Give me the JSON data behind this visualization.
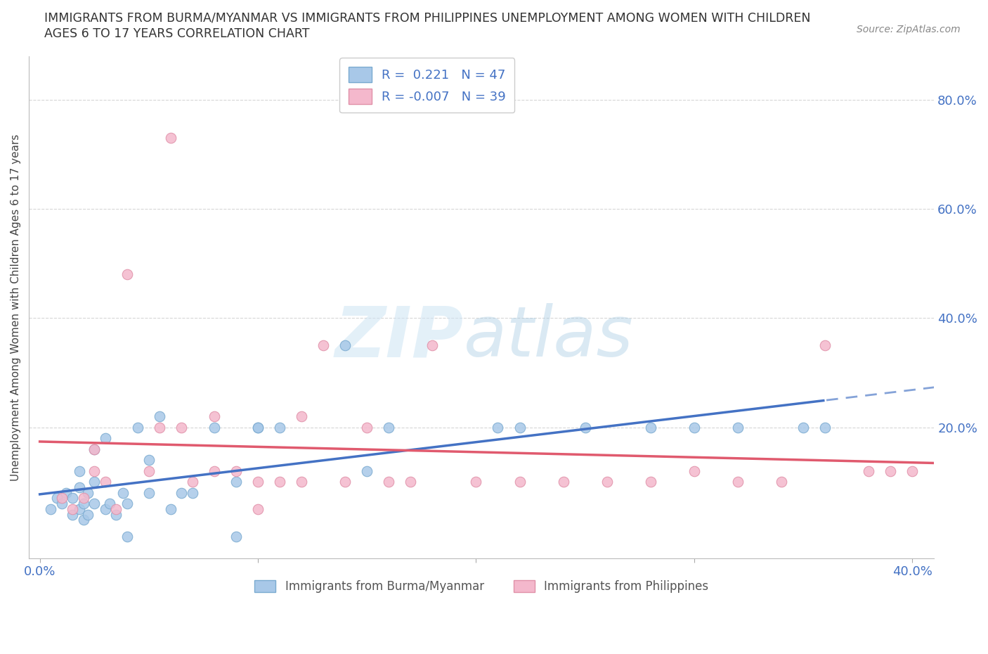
{
  "title_line1": "IMMIGRANTS FROM BURMA/MYANMAR VS IMMIGRANTS FROM PHILIPPINES UNEMPLOYMENT AMONG WOMEN WITH CHILDREN",
  "title_line2": "AGES 6 TO 17 YEARS CORRELATION CHART",
  "source": "Source: ZipAtlas.com",
  "ylabel": "Unemployment Among Women with Children Ages 6 to 17 years",
  "xlim": [
    -0.005,
    0.41
  ],
  "ylim": [
    -0.04,
    0.88
  ],
  "color_burma": "#a8c8e8",
  "color_burma_edge": "#7aaad0",
  "color_burma_line": "#4472c4",
  "color_phil": "#f4b8cc",
  "color_phil_edge": "#e090a8",
  "color_phil_line": "#e05a6e",
  "color_text_blue": "#4472c4",
  "color_grid": "#cccccc",
  "background_color": "#ffffff",
  "burma_x": [
    0.005,
    0.008,
    0.01,
    0.012,
    0.015,
    0.015,
    0.018,
    0.018,
    0.018,
    0.02,
    0.02,
    0.022,
    0.022,
    0.025,
    0.025,
    0.025,
    0.03,
    0.03,
    0.032,
    0.035,
    0.038,
    0.04,
    0.04,
    0.045,
    0.05,
    0.05,
    0.055,
    0.06,
    0.065,
    0.07,
    0.08,
    0.09,
    0.09,
    0.1,
    0.1,
    0.11,
    0.14,
    0.15,
    0.16,
    0.21,
    0.22,
    0.25,
    0.28,
    0.3,
    0.32,
    0.35,
    0.36
  ],
  "burma_y": [
    0.05,
    0.07,
    0.06,
    0.08,
    0.04,
    0.07,
    0.05,
    0.09,
    0.12,
    0.03,
    0.06,
    0.04,
    0.08,
    0.06,
    0.1,
    0.16,
    0.05,
    0.18,
    0.06,
    0.04,
    0.08,
    0.0,
    0.06,
    0.2,
    0.08,
    0.14,
    0.22,
    0.05,
    0.08,
    0.08,
    0.2,
    0.0,
    0.1,
    0.2,
    0.2,
    0.2,
    0.35,
    0.12,
    0.2,
    0.2,
    0.2,
    0.2,
    0.2,
    0.2,
    0.2,
    0.2,
    0.2
  ],
  "phil_x": [
    0.01,
    0.015,
    0.02,
    0.025,
    0.025,
    0.03,
    0.035,
    0.04,
    0.05,
    0.055,
    0.06,
    0.065,
    0.07,
    0.08,
    0.08,
    0.09,
    0.1,
    0.1,
    0.11,
    0.12,
    0.12,
    0.13,
    0.14,
    0.15,
    0.16,
    0.17,
    0.18,
    0.2,
    0.22,
    0.24,
    0.26,
    0.28,
    0.3,
    0.32,
    0.34,
    0.36,
    0.38,
    0.39,
    0.4
  ],
  "phil_y": [
    0.07,
    0.05,
    0.07,
    0.12,
    0.16,
    0.1,
    0.05,
    0.48,
    0.12,
    0.2,
    0.73,
    0.2,
    0.1,
    0.12,
    0.22,
    0.12,
    0.05,
    0.1,
    0.1,
    0.22,
    0.1,
    0.35,
    0.1,
    0.2,
    0.1,
    0.1,
    0.35,
    0.1,
    0.1,
    0.1,
    0.1,
    0.1,
    0.12,
    0.1,
    0.1,
    0.35,
    0.12,
    0.12,
    0.12
  ],
  "legend_r_burma": "0.221",
  "legend_n_burma": "47",
  "legend_r_phil": "-0.007",
  "legend_n_phil": "39",
  "legend_label_burma": "Immigrants from Burma/Myanmar",
  "legend_label_phil": "Immigrants from Philippines"
}
